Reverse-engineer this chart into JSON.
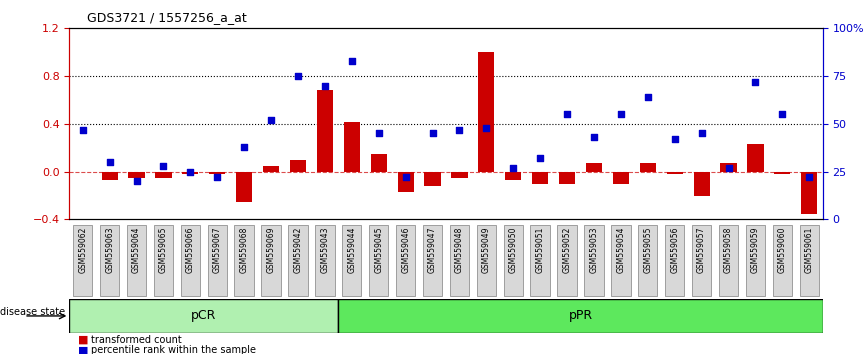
{
  "title": "GDS3721 / 1557256_a_at",
  "samples": [
    "GSM559062",
    "GSM559063",
    "GSM559064",
    "GSM559065",
    "GSM559066",
    "GSM559067",
    "GSM559068",
    "GSM559069",
    "GSM559042",
    "GSM559043",
    "GSM559044",
    "GSM559045",
    "GSM559046",
    "GSM559047",
    "GSM559048",
    "GSM559049",
    "GSM559050",
    "GSM559051",
    "GSM559052",
    "GSM559053",
    "GSM559054",
    "GSM559055",
    "GSM559056",
    "GSM559057",
    "GSM559058",
    "GSM559059",
    "GSM559060",
    "GSM559061"
  ],
  "transformed_count": [
    0.0,
    -0.07,
    -0.05,
    -0.05,
    -0.02,
    -0.02,
    -0.25,
    0.05,
    0.1,
    0.68,
    0.42,
    0.15,
    -0.17,
    -0.12,
    -0.05,
    1.0,
    -0.07,
    -0.1,
    -0.1,
    0.07,
    -0.1,
    0.07,
    -0.02,
    -0.2,
    0.07,
    0.23,
    -0.02,
    -0.35
  ],
  "percentile_rank": [
    0.47,
    0.3,
    0.2,
    0.28,
    0.25,
    0.22,
    0.38,
    0.52,
    0.75,
    0.7,
    0.83,
    0.45,
    0.22,
    0.45,
    0.47,
    0.48,
    0.27,
    0.32,
    0.55,
    0.43,
    0.55,
    0.64,
    0.42,
    0.45,
    0.27,
    0.72,
    0.55,
    0.22
  ],
  "pcr_count": 10,
  "ppr_count": 18,
  "bar_color": "#cc0000",
  "dot_color": "#0000cc",
  "pcr_color": "#90ee90",
  "ppr_color": "#50dd50",
  "group_line_color": "#000000",
  "bg_color": "#ffffff",
  "tick_color_left": "#cc0000",
  "tick_color_right": "#0000cc",
  "ylim_left": [
    -0.4,
    1.2
  ],
  "ylim_right": [
    0.0,
    1.0
  ],
  "yticks_left": [
    -0.4,
    0.0,
    0.4,
    0.8,
    1.2
  ],
  "yticks_right": [
    0.0,
    0.25,
    0.5,
    0.75,
    1.0
  ],
  "ytick_labels_right": [
    "0",
    "25",
    "50",
    "75",
    "100%"
  ],
  "hlines": [
    0.4,
    0.8
  ],
  "zero_line": 0.0
}
